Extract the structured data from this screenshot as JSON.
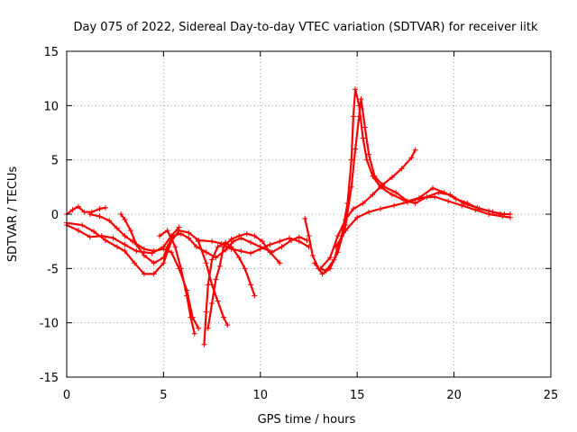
{
  "chart_data": {
    "type": "scatter",
    "title": "Day 075 of 2022, Sidereal Day-to-day VTEC variation (SDTVAR) for receiver iitk",
    "xlabel": "GPS time / hours",
    "ylabel": "SDTVAR / TECUs",
    "xlim": [
      0,
      25
    ],
    "ylim": [
      -15,
      15
    ],
    "x_ticks": [
      "0",
      "5",
      "10",
      "15",
      "20",
      "25"
    ],
    "y_ticks": [
      "-15",
      "-10",
      "-5",
      "0",
      "5",
      "10",
      "15"
    ],
    "grid": true,
    "marker": "+",
    "color": "#ff0000",
    "series": [
      {
        "name": "arc-1",
        "points": [
          [
            0.0,
            0.0
          ],
          [
            0.3,
            0.4
          ],
          [
            0.6,
            0.7
          ],
          [
            0.9,
            0.2
          ],
          [
            1.3,
            0.2
          ],
          [
            1.7,
            0.5
          ],
          [
            2.0,
            0.6
          ]
        ]
      },
      {
        "name": "arc-2",
        "points": [
          [
            0.0,
            -1.0
          ],
          [
            0.6,
            -1.5
          ],
          [
            1.2,
            -2.1
          ],
          [
            1.8,
            -2.0
          ],
          [
            2.4,
            -2.2
          ],
          [
            3.0,
            -2.8
          ],
          [
            3.6,
            -3.4
          ],
          [
            4.4,
            -3.6
          ],
          [
            5.0,
            -3.0
          ],
          [
            5.4,
            -2.0
          ],
          [
            5.8,
            -1.2
          ]
        ]
      },
      {
        "name": "arc-3",
        "points": [
          [
            0.0,
            -0.8
          ],
          [
            0.8,
            -1.0
          ],
          [
            1.4,
            -1.6
          ],
          [
            2.0,
            -2.4
          ],
          [
            2.6,
            -3.0
          ],
          [
            3.0,
            -3.4
          ],
          [
            3.5,
            -4.5
          ],
          [
            4.0,
            -5.5
          ],
          [
            4.5,
            -5.5
          ],
          [
            5.0,
            -4.5
          ],
          [
            5.4,
            -2.5
          ],
          [
            5.8,
            -1.5
          ],
          [
            6.3,
            -1.7
          ],
          [
            6.8,
            -2.4
          ],
          [
            7.5,
            -2.5
          ],
          [
            8.0,
            -2.7
          ],
          [
            8.5,
            -3.2
          ],
          [
            9.0,
            -3.4
          ],
          [
            9.5,
            -3.6
          ],
          [
            10.0,
            -3.2
          ],
          [
            10.5,
            -2.8
          ],
          [
            11.0,
            -2.5
          ],
          [
            11.5,
            -2.2
          ],
          [
            12.0,
            -2.5
          ],
          [
            12.5,
            -3.0
          ]
        ]
      },
      {
        "name": "arc-4",
        "points": [
          [
            1.2,
            0.0
          ],
          [
            1.7,
            -0.2
          ],
          [
            2.2,
            -0.6
          ],
          [
            2.6,
            -1.3
          ],
          [
            3.0,
            -2.0
          ],
          [
            3.4,
            -2.5
          ],
          [
            4.0,
            -3.2
          ],
          [
            4.5,
            -3.4
          ],
          [
            5.0,
            -3.2
          ],
          [
            5.4,
            -3.5
          ],
          [
            5.8,
            -5.0
          ],
          [
            6.2,
            -7.0
          ],
          [
            6.5,
            -9.5
          ],
          [
            6.8,
            -10.5
          ]
        ]
      },
      {
        "name": "arc-5",
        "points": [
          [
            2.8,
            0.0
          ],
          [
            3.0,
            -0.5
          ],
          [
            3.3,
            -1.5
          ],
          [
            3.6,
            -2.8
          ],
          [
            4.0,
            -3.8
          ],
          [
            4.5,
            -4.5
          ],
          [
            5.0,
            -4.0
          ],
          [
            5.2,
            -3.0
          ],
          [
            5.5,
            -2.0
          ],
          [
            5.9,
            -1.8
          ],
          [
            6.3,
            -2.2
          ],
          [
            6.7,
            -3.0
          ],
          [
            7.2,
            -3.5
          ],
          [
            7.7,
            -4.0
          ],
          [
            8.2,
            -3.3
          ],
          [
            8.6,
            -2.5
          ],
          [
            9.0,
            -2.2
          ],
          [
            9.5,
            -2.6
          ],
          [
            10.0,
            -3.0
          ],
          [
            10.6,
            -3.5
          ],
          [
            11.1,
            -3.0
          ],
          [
            11.6,
            -2.4
          ],
          [
            12.0,
            -2.1
          ],
          [
            12.4,
            -2.4
          ]
        ]
      },
      {
        "name": "arc-6",
        "points": [
          [
            4.8,
            -2.0
          ],
          [
            5.2,
            -1.5
          ],
          [
            5.6,
            -3.0
          ],
          [
            5.9,
            -5.0
          ],
          [
            6.2,
            -7.5
          ],
          [
            6.4,
            -9.5
          ],
          [
            6.6,
            -11.0
          ]
        ]
      },
      {
        "name": "arc-7",
        "points": [
          [
            7.1,
            -12.0
          ],
          [
            7.2,
            -9.0
          ],
          [
            7.3,
            -6.5
          ],
          [
            7.5,
            -4.2
          ],
          [
            7.8,
            -3.0
          ],
          [
            8.2,
            -2.6
          ],
          [
            8.5,
            -3.0
          ],
          [
            8.9,
            -4.0
          ],
          [
            9.2,
            -5.0
          ],
          [
            9.5,
            -6.5
          ],
          [
            9.7,
            -7.5
          ]
        ]
      },
      {
        "name": "arc-8",
        "points": [
          [
            7.3,
            -10.5
          ],
          [
            7.5,
            -8.2
          ],
          [
            7.7,
            -6.0
          ],
          [
            7.9,
            -4.8
          ],
          [
            8.1,
            -3.0
          ],
          [
            8.5,
            -2.3
          ],
          [
            8.9,
            -2.0
          ],
          [
            9.3,
            -1.8
          ],
          [
            9.7,
            -2.0
          ],
          [
            10.1,
            -2.5
          ],
          [
            10.5,
            -3.5
          ],
          [
            11.0,
            -4.5
          ]
        ]
      },
      {
        "name": "arc-9",
        "points": [
          [
            6.8,
            -2.5
          ],
          [
            7.2,
            -4.5
          ],
          [
            7.5,
            -6.5
          ],
          [
            7.8,
            -8.0
          ],
          [
            8.1,
            -9.5
          ],
          [
            8.3,
            -10.2
          ]
        ]
      },
      {
        "name": "arc-10",
        "points": [
          [
            12.3,
            -0.4
          ],
          [
            12.5,
            -2.0
          ],
          [
            12.7,
            -3.8
          ],
          [
            13.0,
            -5.0
          ],
          [
            13.4,
            -5.2
          ],
          [
            13.8,
            -4.2
          ],
          [
            14.2,
            -2.0
          ],
          [
            14.5,
            1.0
          ],
          [
            14.7,
            5.0
          ],
          [
            14.8,
            9.0
          ],
          [
            14.9,
            11.5
          ],
          [
            15.1,
            10.0
          ],
          [
            15.3,
            7.0
          ],
          [
            15.5,
            5.0
          ],
          [
            15.8,
            3.5
          ],
          [
            16.2,
            2.5
          ],
          [
            16.8,
            1.8
          ],
          [
            17.4,
            1.3
          ],
          [
            18.0,
            1.0
          ],
          [
            18.6,
            1.6
          ],
          [
            19.2,
            2.0
          ],
          [
            19.8,
            1.8
          ],
          [
            20.5,
            1.0
          ],
          [
            21.2,
            0.6
          ],
          [
            21.8,
            0.3
          ],
          [
            22.4,
            0.0
          ],
          [
            22.9,
            0.0
          ]
        ]
      },
      {
        "name": "arc-11",
        "points": [
          [
            12.8,
            -4.5
          ],
          [
            13.2,
            -5.5
          ],
          [
            13.6,
            -5.0
          ],
          [
            14.0,
            -3.5
          ],
          [
            14.4,
            -1.0
          ],
          [
            14.7,
            2.5
          ],
          [
            14.9,
            6.0
          ],
          [
            15.1,
            9.0
          ],
          [
            15.2,
            10.6
          ],
          [
            15.4,
            8.0
          ],
          [
            15.6,
            5.5
          ],
          [
            15.9,
            3.5
          ],
          [
            16.4,
            2.5
          ],
          [
            17.0,
            2.0
          ],
          [
            17.6,
            1.2
          ],
          [
            18.2,
            1.5
          ],
          [
            18.9,
            2.4
          ],
          [
            19.5,
            2.0
          ],
          [
            20.1,
            1.4
          ],
          [
            20.7,
            1.0
          ],
          [
            21.3,
            0.5
          ],
          [
            22.0,
            0.2
          ],
          [
            22.6,
            0.0
          ]
        ]
      },
      {
        "name": "arc-12",
        "points": [
          [
            13.1,
            -5.0
          ],
          [
            13.6,
            -4.0
          ],
          [
            14.0,
            -2.0
          ],
          [
            14.4,
            -0.5
          ],
          [
            14.8,
            0.5
          ],
          [
            15.3,
            1.0
          ],
          [
            15.8,
            1.8
          ],
          [
            16.3,
            2.7
          ],
          [
            16.8,
            3.4
          ],
          [
            17.3,
            4.2
          ],
          [
            17.8,
            5.2
          ],
          [
            18.0,
            5.9
          ]
        ]
      },
      {
        "name": "arc-13",
        "points": [
          [
            13.9,
            -3.0
          ],
          [
            14.4,
            -1.5
          ],
          [
            15.0,
            -0.3
          ],
          [
            15.6,
            0.2
          ],
          [
            16.2,
            0.5
          ],
          [
            16.9,
            0.8
          ],
          [
            17.6,
            1.1
          ],
          [
            18.3,
            1.5
          ],
          [
            19.0,
            1.6
          ],
          [
            19.7,
            1.2
          ],
          [
            20.4,
            0.8
          ],
          [
            21.1,
            0.4
          ],
          [
            21.8,
            0.0
          ],
          [
            22.5,
            -0.2
          ],
          [
            22.9,
            -0.3
          ]
        ]
      }
    ]
  }
}
